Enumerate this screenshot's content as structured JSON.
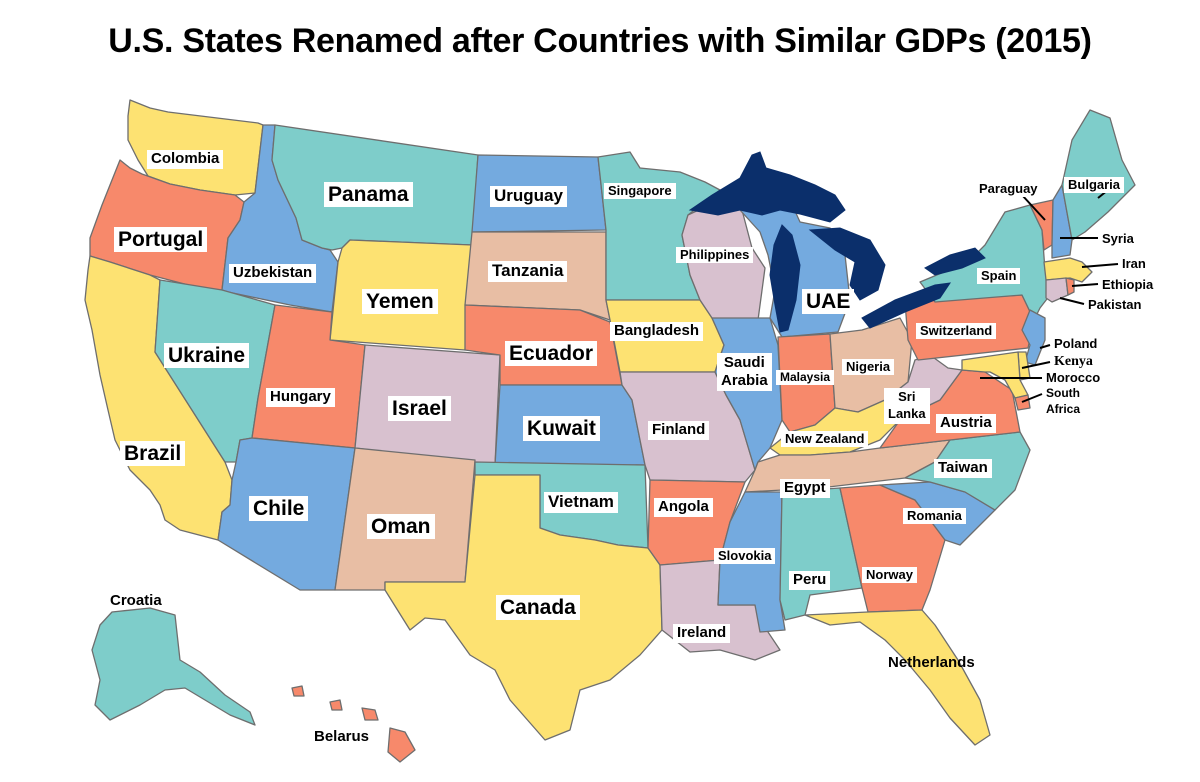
{
  "title": "U.S. States Renamed after Countries with Similar GDPs (2015)",
  "colors": {
    "yellow": "#fde272",
    "teal": "#7ecdca",
    "blue": "#74aadf",
    "orange": "#f7896b",
    "lilac": "#d8c1cf",
    "peach": "#e8bea4",
    "lakes": "#0b2f6b"
  },
  "labels": {
    "washington": "Colombia",
    "oregon": "Portugal",
    "california": "Brazil",
    "idaho": "Uzbekistan",
    "nevada": "Ukraine",
    "montana": "Panama",
    "wyoming": "Yemen",
    "utah": "Hungary",
    "colorado": "Israel",
    "arizona": "Chile",
    "new_mexico": "Oman",
    "north_dakota": "Uruguay",
    "south_dakota": "Tanzania",
    "nebraska": "Ecuador",
    "kansas": "Kuwait",
    "oklahoma": "Vietnam",
    "texas": "Canada",
    "minnesota": "Singapore",
    "iowa": "Bangladesh",
    "missouri": "Finland",
    "arkansas": "Angola",
    "louisiana": "Ireland",
    "wisconsin": "Philippines",
    "illinois_1": "Saudi",
    "illinois_2": "Arabia",
    "michigan": "UAE",
    "indiana": "Malaysia",
    "ohio": "Nigeria",
    "kentucky": "New Zealand",
    "tennessee": "Egypt",
    "mississippi": "Slovokia",
    "alabama": "Peru",
    "georgia": "Norway",
    "florida": "Netherlands",
    "south_carolina": "Romania",
    "north_carolina": "Taiwan",
    "virginia": "Austria",
    "west_virginia_1": "Sri",
    "west_virginia_2": "Lanka",
    "pennsylvania": "Switzerland",
    "new_york": "Spain",
    "vermont": "Paraguay",
    "maine": "Bulgaria",
    "new_hampshire": "Syria",
    "massachusetts": "Iran",
    "rhode_island": "Ethiopia",
    "connecticut": "Pakistan",
    "new_jersey": "Poland",
    "delaware": "Kenya",
    "maryland": "Morocco",
    "dc_1": "South",
    "dc_2": "Africa",
    "alaska": "Croatia",
    "hawaii": "Belarus"
  }
}
